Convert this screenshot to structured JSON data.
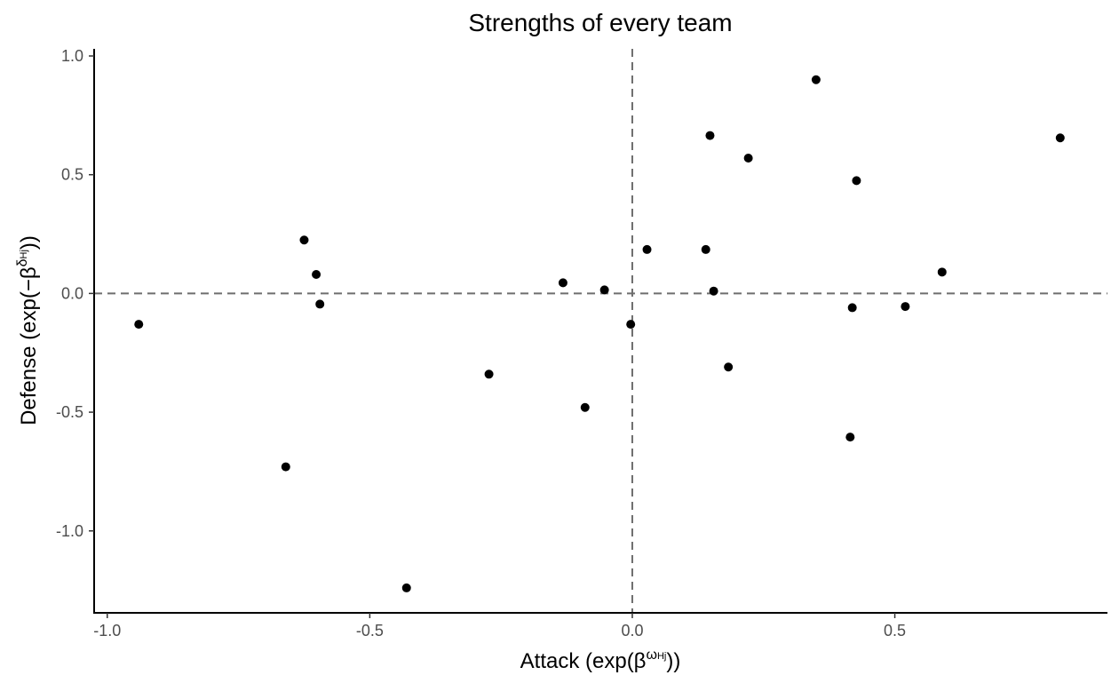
{
  "chart_data": {
    "type": "scatter",
    "title": "Strengths of every team",
    "xlabel": {
      "prefix": "Attack (exp(β",
      "sup": "ω",
      "sub": "Hj",
      "suffix": "))"
    },
    "ylabel": {
      "prefix": "Defense (exp(−β",
      "sup": "δ",
      "sub": "Hj",
      "suffix": "))"
    },
    "xlim": [
      -1.025,
      0.905
    ],
    "ylim": [
      -1.345,
      1.03
    ],
    "xticks": [
      -1.0,
      -0.5,
      0.0,
      0.5
    ],
    "xtick_labels": [
      "-1.0",
      "-0.5",
      "0.0",
      "0.5"
    ],
    "yticks": [
      1.0,
      0.5,
      0.0,
      -0.5,
      -1.0
    ],
    "ytick_labels": [
      "1.0",
      "0.5",
      "0.0",
      "-0.5",
      "-1.0"
    ],
    "reference_lines": {
      "x": 0.0,
      "y": 0.0,
      "style": "dashed"
    },
    "grid": false,
    "point_color": "#000000",
    "points": [
      {
        "x": -0.94,
        "y": -0.13
      },
      {
        "x": -0.66,
        "y": -0.73
      },
      {
        "x": -0.625,
        "y": 0.225
      },
      {
        "x": -0.602,
        "y": 0.08
      },
      {
        "x": -0.595,
        "y": -0.045
      },
      {
        "x": -0.43,
        "y": -1.24
      },
      {
        "x": -0.273,
        "y": -0.34
      },
      {
        "x": -0.132,
        "y": 0.045
      },
      {
        "x": -0.09,
        "y": -0.48
      },
      {
        "x": -0.053,
        "y": 0.015
      },
      {
        "x": -0.003,
        "y": -0.13
      },
      {
        "x": 0.028,
        "y": 0.185
      },
      {
        "x": 0.14,
        "y": 0.185
      },
      {
        "x": 0.148,
        "y": 0.665
      },
      {
        "x": 0.155,
        "y": 0.01
      },
      {
        "x": 0.183,
        "y": -0.31
      },
      {
        "x": 0.221,
        "y": 0.57
      },
      {
        "x": 0.35,
        "y": 0.9
      },
      {
        "x": 0.415,
        "y": -0.605
      },
      {
        "x": 0.419,
        "y": -0.06
      },
      {
        "x": 0.427,
        "y": 0.475
      },
      {
        "x": 0.52,
        "y": -0.055
      },
      {
        "x": 0.59,
        "y": 0.09
      },
      {
        "x": 0.815,
        "y": 0.655
      }
    ]
  }
}
